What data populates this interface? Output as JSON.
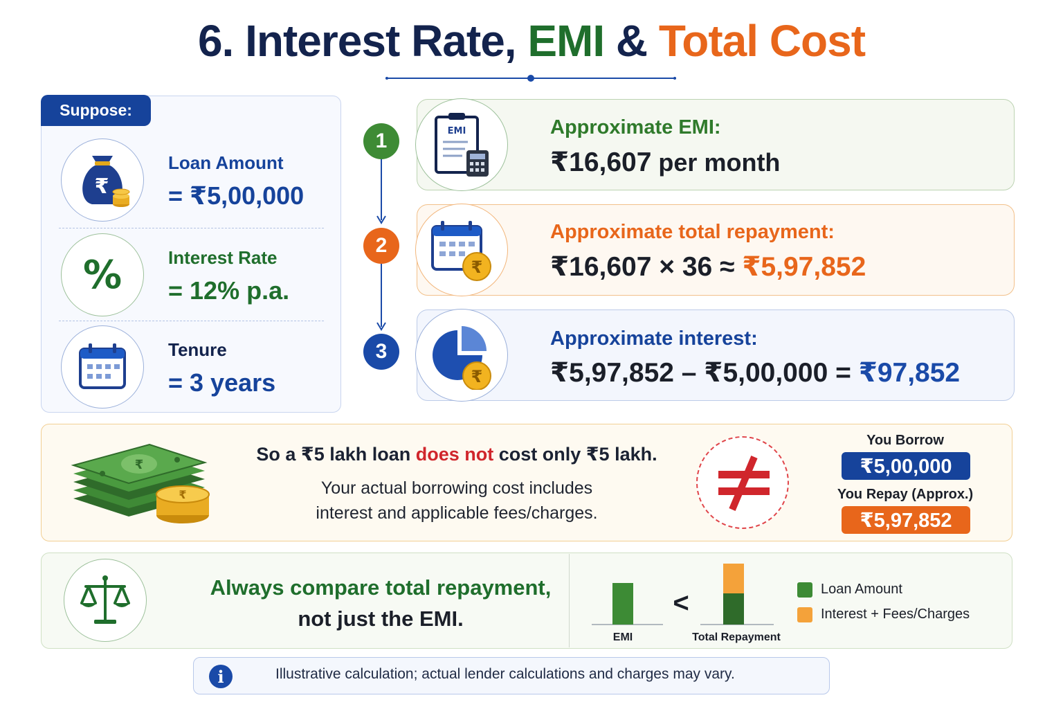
{
  "header": {
    "title_part1": "6. Interest Rate, ",
    "title_part2": "EMI",
    "title_part3": " & ",
    "title_part4": "Total Cost"
  },
  "suppose": {
    "tag": "Suppose:",
    "items": [
      {
        "label": "Loan Amount",
        "value": "= ₹5,00,000",
        "icon": "money-bag-icon"
      },
      {
        "label": "Interest Rate",
        "value": "= 12% p.a.",
        "icon": "percent-icon"
      },
      {
        "label": "Tenure",
        "value": "= 3 years",
        "icon": "calendar-icon"
      }
    ]
  },
  "steps": [
    {
      "number": "1",
      "label": "Approximate EMI:",
      "value_main": "₹16,607",
      "value_suffix": " per month",
      "icon": "emi-calculator-icon",
      "icon_text": "EMI"
    },
    {
      "number": "2",
      "label": "Approximate total repayment:",
      "value_main": "₹16,607 × 36 ≈ ",
      "value_highlight": "₹5,97,852",
      "icon": "calendar-rupee-icon"
    },
    {
      "number": "3",
      "label": "Approximate interest:",
      "value_main": "₹5,97,852 – ₹5,00,000 = ",
      "value_highlight": "₹97,852",
      "icon": "pie-chart-rupee-icon"
    }
  ],
  "insight": {
    "head_part1": "So a ₹5 lakh loan ",
    "head_emphasis": "does not",
    "head_part2": " cost only ₹5 lakh.",
    "sub_line1": "Your actual borrowing cost includes",
    "sub_line2": "interest and applicable fees/charges.",
    "borrow_label": "You Borrow",
    "borrow_value": "₹5,00,000",
    "repay_label": "You Repay (Approx.)",
    "repay_value": "₹5,97,852"
  },
  "compare": {
    "line1": "Always compare total repayment,",
    "line2": "not just the EMI.",
    "less_than": "<",
    "legend": [
      {
        "label": "Loan Amount",
        "color": "#3d8b35"
      },
      {
        "label": "Interest + Fees/Charges",
        "color": "#f4a23a"
      }
    ]
  },
  "chart_data": {
    "type": "bar",
    "categories": [
      "EMI",
      "Total Repayment"
    ],
    "series": [
      {
        "name": "Loan Amount",
        "values": [
          16607,
          500000
        ]
      },
      {
        "name": "Interest + Fees/Charges",
        "values": [
          0,
          97852
        ]
      }
    ],
    "note": "schematic comparison, not to scale"
  },
  "footnote": {
    "icon_text": "i",
    "text": "Illustrative calculation; actual lender calculations and charges may vary."
  },
  "colors": {
    "navy": "#13234d",
    "blue": "#16439b",
    "green": "#1f6e2c",
    "orange": "#e8661b",
    "red": "#d0262c"
  }
}
